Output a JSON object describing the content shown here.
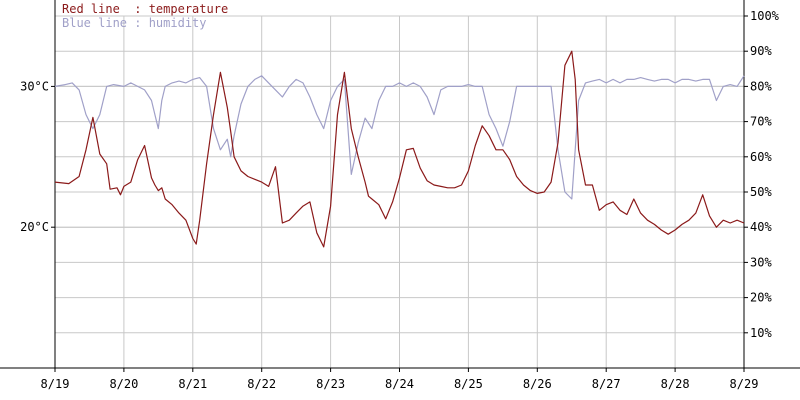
{
  "chart_data": {
    "type": "line",
    "legend": [
      {
        "text": "Red line  : temperature",
        "color": "#8b1a1a"
      },
      {
        "text": "Blue line : humidity",
        "color": "#a0a0c8"
      }
    ],
    "x_ticks": [
      "8/19",
      "8/20",
      "8/21",
      "8/22",
      "8/23",
      "8/24",
      "8/25",
      "8/26",
      "8/27",
      "8/28",
      "8/29"
    ],
    "x_range": [
      0,
      10
    ],
    "left_axis": {
      "ticks": [
        {
          "value": 20,
          "label": "20°C"
        },
        {
          "value": 30,
          "label": "30°C"
        }
      ],
      "range": [
        10,
        35
      ]
    },
    "right_axis": {
      "ticks": [
        {
          "value": 10,
          "label": "10%"
        },
        {
          "value": 20,
          "label": "20%"
        },
        {
          "value": 30,
          "label": "30%"
        },
        {
          "value": 40,
          "label": "40%"
        },
        {
          "value": 50,
          "label": "50%"
        },
        {
          "value": 60,
          "label": "60%"
        },
        {
          "value": 70,
          "label": "70%"
        },
        {
          "value": 80,
          "label": "80%"
        },
        {
          "value": 90,
          "label": "90%"
        },
        {
          "value": 100,
          "label": "100%"
        }
      ],
      "range": [
        0,
        100
      ]
    },
    "grid": true,
    "series": [
      {
        "axis": "left",
        "color": "#8b1a1a",
        "x": [
          0,
          0.2,
          0.35,
          0.45,
          0.55,
          0.65,
          0.75,
          0.8,
          0.9,
          0.95,
          1.0,
          1.1,
          1.2,
          1.3,
          1.4,
          1.45,
          1.5,
          1.55,
          1.6,
          1.7,
          1.8,
          1.9,
          2.0,
          2.05,
          2.1,
          2.2,
          2.3,
          2.4,
          2.5,
          2.55,
          2.6,
          2.7,
          2.8,
          2.9,
          3.0,
          3.1,
          3.2,
          3.3,
          3.4,
          3.5,
          3.6,
          3.7,
          3.8,
          3.9,
          4.0,
          4.1,
          4.2,
          4.3,
          4.4,
          4.5,
          4.55,
          4.6,
          4.7,
          4.8,
          4.9,
          5.0,
          5.1,
          5.2,
          5.3,
          5.4,
          5.5,
          5.6,
          5.7,
          5.8,
          5.9,
          6.0,
          6.1,
          6.2,
          6.3,
          6.4,
          6.5,
          6.6,
          6.7,
          6.8,
          6.9,
          7.0,
          7.1,
          7.2,
          7.3,
          7.4,
          7.5,
          7.55,
          7.6,
          7.7,
          7.8,
          7.9,
          8.0,
          8.1,
          8.2,
          8.3,
          8.4,
          8.5,
          8.6,
          8.7,
          8.8,
          8.9,
          9.0,
          9.1,
          9.2,
          9.3,
          9.4,
          9.5,
          9.6,
          9.7,
          9.8,
          9.9,
          10.0
        ],
        "values": [
          23.2,
          23.1,
          23.6,
          25.5,
          27.8,
          25.2,
          24.5,
          22.7,
          22.8,
          22.3,
          22.9,
          23.2,
          24.8,
          25.8,
          23.5,
          23.0,
          22.6,
          22.8,
          22.0,
          21.6,
          21.0,
          20.5,
          19.2,
          18.8,
          20.5,
          24.5,
          28.0,
          31.0,
          28.5,
          26.8,
          25.0,
          24.0,
          23.6,
          23.4,
          23.2,
          22.9,
          24.3,
          20.3,
          20.5,
          21.0,
          21.5,
          21.8,
          19.6,
          18.6,
          21.5,
          28.0,
          31.0,
          27.0,
          25.0,
          23.2,
          22.2,
          22.0,
          21.6,
          20.6,
          21.8,
          23.5,
          25.5,
          25.6,
          24.2,
          23.3,
          23.0,
          22.9,
          22.8,
          22.8,
          23.0,
          24.0,
          25.8,
          27.2,
          26.5,
          25.5,
          25.5,
          24.8,
          23.6,
          23.0,
          22.6,
          22.4,
          22.5,
          23.2,
          26.0,
          31.5,
          32.5,
          30.5,
          25.5,
          23.0,
          23.0,
          21.2,
          21.6,
          21.8,
          21.2,
          20.9,
          22.0,
          21.0,
          20.5,
          20.2,
          19.8,
          19.5,
          19.8,
          20.2,
          20.5,
          21.0,
          22.3,
          20.8,
          20.0,
          20.5,
          20.3,
          20.5,
          20.3
        ]
      },
      {
        "axis": "right",
        "color": "#a0a0c8",
        "x": [
          0,
          0.15,
          0.25,
          0.35,
          0.45,
          0.55,
          0.65,
          0.75,
          0.85,
          1.0,
          1.1,
          1.2,
          1.3,
          1.4,
          1.45,
          1.5,
          1.55,
          1.6,
          1.7,
          1.8,
          1.9,
          2.0,
          2.1,
          2.2,
          2.3,
          2.4,
          2.5,
          2.55,
          2.6,
          2.7,
          2.8,
          2.9,
          3.0,
          3.1,
          3.2,
          3.3,
          3.4,
          3.5,
          3.6,
          3.7,
          3.8,
          3.9,
          4.0,
          4.1,
          4.2,
          4.3,
          4.4,
          4.5,
          4.6,
          4.7,
          4.8,
          4.9,
          5.0,
          5.1,
          5.2,
          5.3,
          5.4,
          5.5,
          5.6,
          5.7,
          5.8,
          5.9,
          6.0,
          6.1,
          6.2,
          6.3,
          6.4,
          6.5,
          6.6,
          6.7,
          6.8,
          6.9,
          7.0,
          7.1,
          7.2,
          7.3,
          7.4,
          7.5,
          7.6,
          7.7,
          7.8,
          7.9,
          8.0,
          8.1,
          8.2,
          8.3,
          8.4,
          8.5,
          8.6,
          8.7,
          8.8,
          8.9,
          9.0,
          9.1,
          9.2,
          9.3,
          9.4,
          9.5,
          9.6,
          9.7,
          9.8,
          9.9,
          10.0
        ],
        "values": [
          80,
          80.5,
          81,
          79,
          72,
          68,
          72,
          80,
          80.5,
          80,
          81,
          80,
          79,
          76,
          72,
          68,
          76,
          80,
          81,
          81.5,
          81,
          82,
          82.5,
          80,
          68,
          62,
          65,
          60,
          66,
          75,
          80,
          82,
          83,
          81,
          79,
          77,
          80,
          82,
          81,
          77,
          72,
          68,
          76,
          80,
          82,
          55,
          64,
          71,
          68,
          76,
          80,
          80,
          81,
          80,
          81,
          80,
          77,
          72,
          79,
          80,
          80,
          80,
          80.5,
          80,
          80,
          72,
          68,
          63,
          70,
          80,
          80,
          80,
          80,
          80,
          80,
          62,
          50,
          48,
          76,
          81,
          81.5,
          82,
          81,
          82,
          81,
          82,
          82,
          82.5,
          82,
          81.5,
          82,
          82,
          81,
          82,
          82,
          81.5,
          82,
          82,
          76,
          80,
          80.5,
          80,
          83
        ]
      }
    ]
  }
}
